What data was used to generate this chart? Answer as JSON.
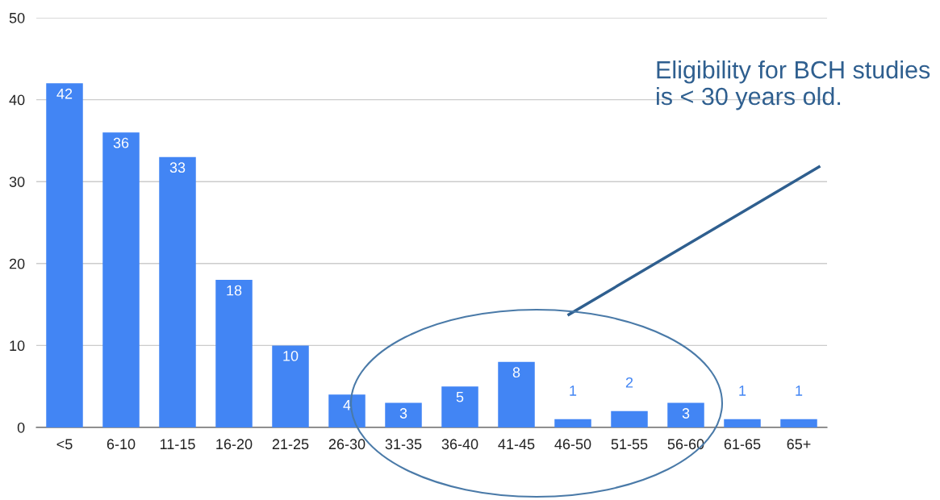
{
  "chart_data": {
    "type": "bar",
    "categories": [
      "<5",
      "6-10",
      "11-15",
      "16-20",
      "21-25",
      "26-30",
      "31-35",
      "36-40",
      "41-45",
      "46-50",
      "51-55",
      "56-60",
      "61-65",
      "65+"
    ],
    "values": [
      42,
      36,
      33,
      18,
      10,
      4,
      3,
      5,
      8,
      1,
      2,
      3,
      1,
      1
    ],
    "color": "#4285f4",
    "ylim": [
      0,
      50
    ],
    "yticks": [
      0,
      10,
      20,
      30,
      40,
      50
    ],
    "grid": "y",
    "data_labels": true,
    "annotations": [
      "Eligibility for BCH studies is < 30 years old."
    ]
  }
}
